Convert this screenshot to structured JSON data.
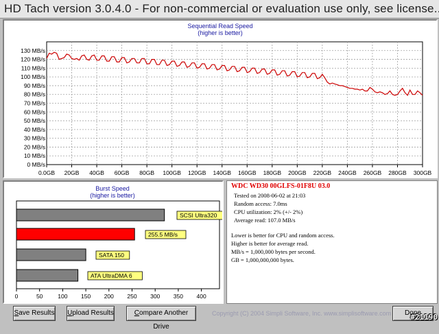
{
  "window": {
    "title": "HD Tach version 3.0.4.0  - For non-commercial or evaluation use only, see license..."
  },
  "read_chart": {
    "title": "Sequential Read Speed",
    "subtitle": "(higher is better)"
  },
  "burst_chart": {
    "title": "Burst Speed",
    "subtitle": "(higher is better)"
  },
  "chart_data": [
    {
      "type": "line",
      "title": "Sequential Read Speed",
      "subtitle": "(higher is better)",
      "x_ticks": [
        "0.0GB",
        "20GB",
        "40GB",
        "60GB",
        "80GB",
        "100GB",
        "120GB",
        "140GB",
        "160GB",
        "180GB",
        "200GB",
        "220GB",
        "240GB",
        "260GB",
        "280GB",
        "300GB"
      ],
      "y_ticks": [
        "0 MB/s",
        "10 MB/s",
        "20 MB/s",
        "30 MB/s",
        "40 MB/s",
        "50 MB/s",
        "60 MB/s",
        "70 MB/s",
        "80 MB/s",
        "90 MB/s",
        "100 MB/s",
        "110 MB/s",
        "120 MB/s",
        "130 MB/s"
      ],
      "xlim": [
        0,
        300
      ],
      "ylim": [
        0,
        140
      ],
      "grid": true,
      "line_color": "#cc0000",
      "series": [
        {
          "x": [
            0,
            2,
            4,
            6,
            8,
            10,
            12,
            14,
            16,
            18,
            20,
            22,
            24,
            26,
            28,
            30,
            32,
            34,
            36,
            38,
            40,
            42,
            44,
            46,
            48,
            50,
            52,
            54,
            56,
            58,
            60,
            62,
            64,
            66,
            68,
            70,
            72,
            74,
            76,
            78,
            80,
            82,
            84,
            86,
            88,
            90,
            92,
            94,
            96,
            98,
            100,
            102,
            104,
            106,
            108,
            110,
            112,
            114,
            116,
            118,
            120,
            122,
            124,
            126,
            128,
            130,
            132,
            134,
            136,
            138,
            140,
            142,
            144,
            146,
            148,
            150,
            152,
            154,
            156,
            158,
            160,
            162,
            164,
            166,
            168,
            170,
            172,
            174,
            176,
            178,
            180,
            182,
            184,
            186,
            188,
            190,
            192,
            194,
            196,
            198,
            200,
            202,
            204,
            206,
            208,
            210,
            212,
            214,
            216,
            218,
            220,
            222,
            224,
            226,
            228,
            230,
            232,
            234,
            236,
            238,
            240,
            242,
            244,
            246,
            248,
            250,
            252,
            254,
            256,
            258,
            260,
            262,
            264,
            266,
            268,
            270,
            272,
            274,
            276,
            278,
            280,
            282,
            284,
            286,
            288,
            290,
            292,
            294,
            296,
            298,
            300
          ],
          "values": [
            121,
            127,
            126,
            128,
            127,
            120,
            121,
            122,
            126,
            125,
            121,
            120,
            121,
            119,
            124,
            125,
            120,
            119,
            124,
            125,
            119,
            119,
            124,
            124,
            118,
            118,
            123,
            123,
            117,
            117,
            122,
            122,
            116,
            117,
            121,
            121,
            116,
            116,
            121,
            121,
            115,
            115,
            120,
            120,
            114,
            114,
            119,
            119,
            113,
            114,
            118,
            118,
            112,
            113,
            117,
            117,
            111,
            112,
            116,
            116,
            110,
            111,
            115,
            115,
            109,
            110,
            114,
            114,
            108,
            109,
            113,
            113,
            107,
            108,
            112,
            112,
            106,
            107,
            111,
            111,
            105,
            106,
            110,
            110,
            104,
            105,
            109,
            109,
            103,
            104,
            108,
            108,
            102,
            103,
            107,
            107,
            101,
            102,
            106,
            106,
            100,
            101,
            105,
            105,
            99,
            100,
            104,
            104,
            98,
            99,
            103,
            99,
            94,
            92,
            93,
            92,
            91,
            90,
            90,
            89,
            88,
            87,
            87,
            86,
            86,
            85,
            86,
            84,
            84,
            88,
            86,
            83,
            82,
            83,
            82,
            80,
            81,
            84,
            80,
            79,
            80,
            84,
            87,
            82,
            79,
            85,
            80,
            80,
            84,
            82,
            79
          ]
        }
      ]
    },
    {
      "type": "bar",
      "title": "Burst Speed",
      "subtitle": "(higher is better)",
      "orientation": "horizontal",
      "x_ticks": [
        "0",
        "50",
        "100",
        "150",
        "200",
        "250",
        "300",
        "350",
        "400"
      ],
      "xlim": [
        0,
        400
      ],
      "bars": [
        {
          "label": "SCSI Ultra320",
          "value": 320,
          "color": "#808080"
        },
        {
          "label": "255.5 MB/s",
          "value": 255.5,
          "color": "#ff0000"
        },
        {
          "label": "SATA 150",
          "value": 150,
          "color": "#808080"
        },
        {
          "label": "ATA UltraDMA 6",
          "value": 133,
          "color": "#808080"
        }
      ]
    }
  ],
  "info": {
    "drive": "WDC  WD30 00GLFS-01F8U 03.0",
    "tested": "Tested on 2008-06-02 at 21:03",
    "random_access": "Random access: 7.0ms",
    "cpu": "CPU utilization: 2% (+/- 2%)",
    "average_read": "Average read: 107.0 MB/s",
    "note1": "Lower is better for CPU and random access.",
    "note2": "Higher is better for average read.",
    "note3": "MB/s = 1,000,000 bytes per second.",
    "note4": "GB = 1,000,000,000 bytes."
  },
  "buttons": {
    "save_first": "S",
    "save_rest": "ave Results",
    "upload_first": "U",
    "upload_rest": "pload Results",
    "compare_first": "C",
    "compare_rest": "ompare Another Drive",
    "done": "Done"
  },
  "footer": {
    "copyright": "Copyright (C) 2004 Simpli Software, Inc. www.simplisoftware.com",
    "watermark": "#21190"
  }
}
